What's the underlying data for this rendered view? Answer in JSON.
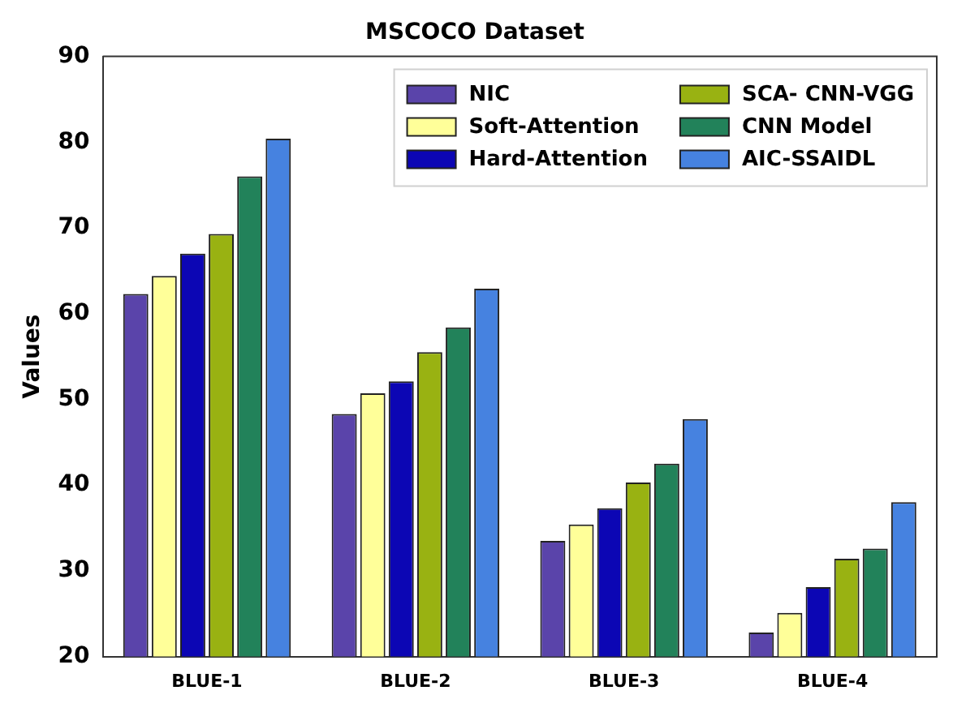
{
  "chart_data": {
    "type": "bar",
    "title": "MSCOCO Dataset",
    "ylabel": "Values",
    "categories": [
      "BLUE-1",
      "BLUE-2",
      "BLUE-3",
      "BLUE-4"
    ],
    "series": [
      {
        "name": "NIC",
        "color": "#5a44aa",
        "values": [
          62.3,
          48.3,
          33.5,
          22.8
        ]
      },
      {
        "name": "Soft-Attention",
        "color": "#ffff99",
        "values": [
          64.4,
          50.7,
          35.4,
          25.1
        ]
      },
      {
        "name": "Hard-Attention",
        "color": "#0c06b4",
        "values": [
          67.0,
          52.1,
          37.3,
          28.1
        ]
      },
      {
        "name": "SCA- CNN-VGG",
        "color": "#99b212",
        "values": [
          69.3,
          55.5,
          40.3,
          31.4
        ]
      },
      {
        "name": "CNN Model",
        "color": "#22825a",
        "values": [
          76.0,
          58.4,
          42.5,
          32.6
        ]
      },
      {
        "name": "AIC-SSAIDL",
        "color": "#4682e0",
        "values": [
          80.4,
          62.9,
          47.7,
          38.0
        ]
      }
    ],
    "ylim": [
      20,
      90
    ],
    "yticks": [
      20,
      30,
      40,
      50,
      60,
      70,
      80,
      90
    ],
    "grid": false,
    "legend": "top right"
  }
}
